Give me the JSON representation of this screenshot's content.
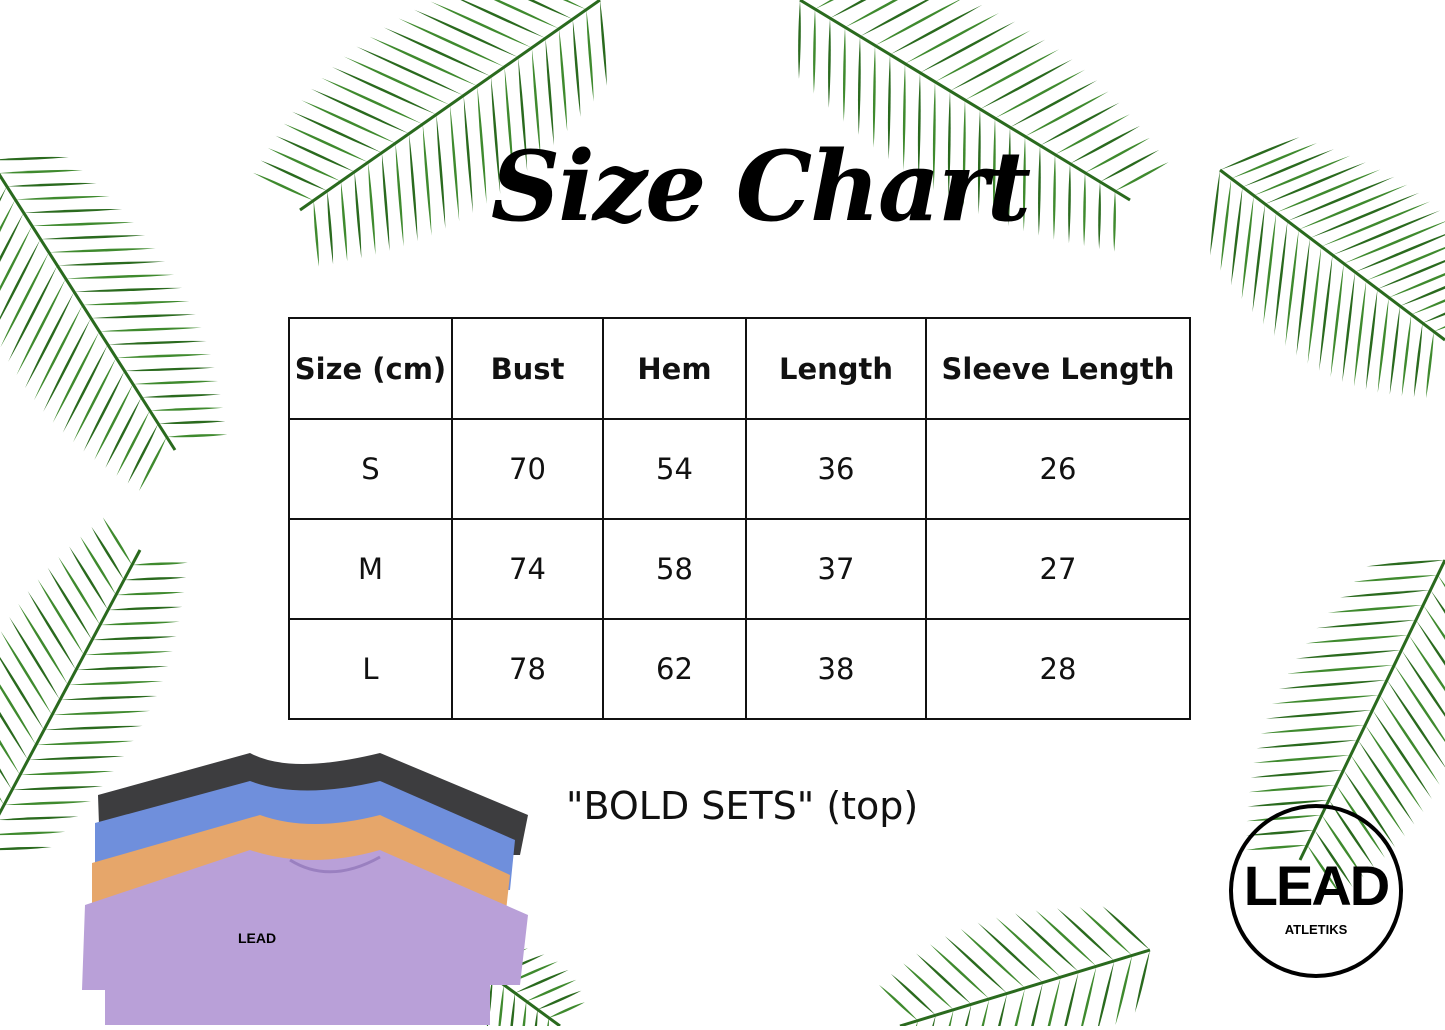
{
  "title": "Size Chart",
  "table": {
    "headers": [
      "Size (cm)",
      "Bust",
      "Hem",
      "Length",
      "Sleeve Length"
    ],
    "rows": [
      [
        "S",
        "70",
        "54",
        "36",
        "26"
      ],
      [
        "M",
        "74",
        "58",
        "37",
        "27"
      ],
      [
        "L",
        "78",
        "62",
        "38",
        "28"
      ]
    ]
  },
  "caption": "\"BOLD SETS\" (top)",
  "logo": {
    "main": "LEAD",
    "sub": "ATLETIKS"
  },
  "product_image": {
    "shirt_logo": "LEAD",
    "colors": [
      "#3d3d3f",
      "#6f8fdc",
      "#e6a66a",
      "#b9a0d8"
    ]
  },
  "colors": {
    "leaf": "#3f8a2e",
    "leaf_dark": "#2a6a1e"
  }
}
